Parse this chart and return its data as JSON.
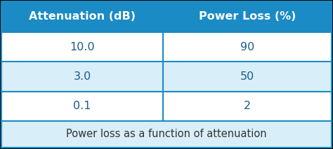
{
  "col_headers": [
    "Attenuation (dB)",
    "Power Loss (%)"
  ],
  "rows": [
    [
      "10.0",
      "90"
    ],
    [
      "3.0",
      "50"
    ],
    [
      "0.1",
      "2"
    ]
  ],
  "caption": "Power loss as a function of attenuation",
  "header_bg": "#1a8bc4",
  "header_text_color": "#ffffff",
  "row_bg_odd": "#ffffff",
  "row_bg_even": "#d8eef8",
  "caption_bg": "#d8eef8",
  "cell_text_color": "#1a5c8a",
  "caption_text_color": "#333333",
  "border_color": "#1a8bc4",
  "header_fontsize": 11.5,
  "cell_fontsize": 11.5,
  "caption_fontsize": 10.5,
  "border_lw": 1.5
}
